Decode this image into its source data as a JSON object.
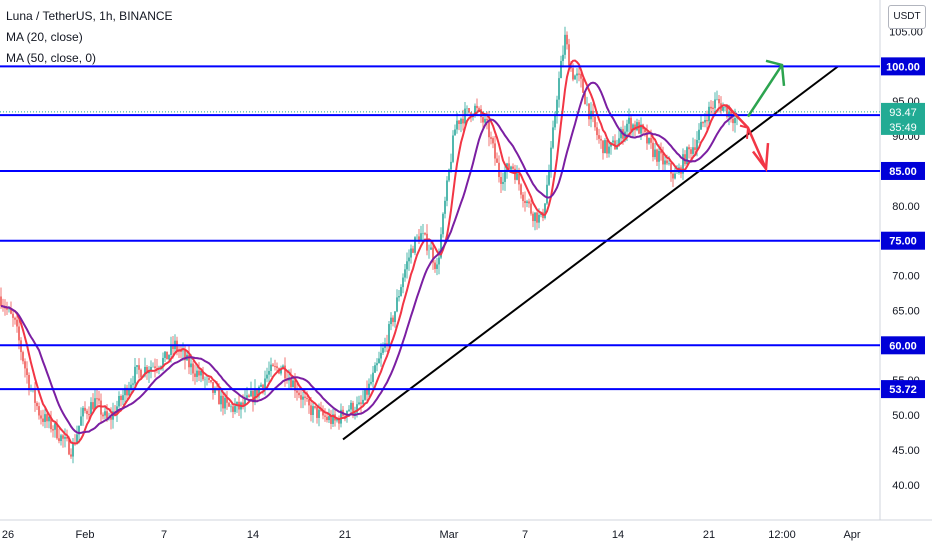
{
  "chart_data": {
    "type": "candlestick",
    "title": "Luna / TetherUS, 1h, BINANCE",
    "indicators": [
      "MA (20, close)",
      "MA (50, close, 0)"
    ],
    "unit": "USDT",
    "ylim": [
      37.5,
      109
    ],
    "y_ticks": [
      40,
      45,
      50,
      55,
      65,
      70,
      75,
      80,
      85,
      90,
      95,
      105
    ],
    "x_ticks": [
      "26",
      "Feb",
      "7",
      "14",
      "21",
      "Mar",
      "7",
      "14",
      "21",
      "12:00",
      "Apr"
    ],
    "horizontal_levels": [
      {
        "price": 100.0,
        "label": "100.00"
      },
      {
        "price": 93.0,
        "label": "93.00"
      },
      {
        "price": 85.0,
        "label": "85.00"
      },
      {
        "price": 75.0,
        "label": "75.00"
      },
      {
        "price": 60.0,
        "label": "60.00"
      },
      {
        "price": 53.72,
        "label": "53.72"
      }
    ],
    "current_price": {
      "label": "93.47",
      "countdown": "35:49",
      "price": 93.47
    },
    "trendline": [
      {
        "t": 0.0,
        "p": 46.5
      },
      {
        "t": 1.0,
        "p": 100.0
      }
    ],
    "price_path": [
      [
        0,
        67
      ],
      [
        15,
        63
      ],
      [
        28,
        55
      ],
      [
        40,
        50
      ],
      [
        55,
        48
      ],
      [
        65,
        46
      ],
      [
        72,
        45
      ],
      [
        82,
        50
      ],
      [
        95,
        52
      ],
      [
        108,
        49
      ],
      [
        120,
        52
      ],
      [
        135,
        56
      ],
      [
        150,
        57
      ],
      [
        165,
        58
      ],
      [
        175,
        60
      ],
      [
        190,
        57
      ],
      [
        205,
        55
      ],
      [
        215,
        53
      ],
      [
        228,
        51
      ],
      [
        240,
        51
      ],
      [
        255,
        53
      ],
      [
        268,
        56
      ],
      [
        282,
        57
      ],
      [
        296,
        54
      ],
      [
        308,
        51
      ],
      [
        320,
        50
      ],
      [
        335,
        49
      ],
      [
        348,
        51
      ],
      [
        360,
        51
      ],
      [
        372,
        55
      ],
      [
        385,
        60
      ],
      [
        395,
        65
      ],
      [
        403,
        70
      ],
      [
        412,
        74
      ],
      [
        420,
        76
      ],
      [
        430,
        74
      ],
      [
        437,
        71
      ],
      [
        443,
        78
      ],
      [
        450,
        86
      ],
      [
        456,
        92
      ],
      [
        464,
        93
      ],
      [
        475,
        94
      ],
      [
        488,
        91
      ],
      [
        500,
        84
      ],
      [
        512,
        86
      ],
      [
        522,
        82
      ],
      [
        532,
        79
      ],
      [
        542,
        78
      ],
      [
        550,
        86
      ],
      [
        557,
        96
      ],
      [
        565,
        104
      ],
      [
        572,
        99
      ],
      [
        580,
        98
      ],
      [
        590,
        93
      ],
      [
        600,
        89
      ],
      [
        608,
        88
      ],
      [
        617,
        89
      ],
      [
        628,
        92
      ],
      [
        640,
        91
      ],
      [
        652,
        88
      ],
      [
        665,
        86
      ],
      [
        676,
        84
      ],
      [
        685,
        87
      ],
      [
        695,
        89
      ],
      [
        706,
        93
      ],
      [
        716,
        95
      ],
      [
        724,
        94
      ],
      [
        732,
        93
      ],
      [
        738,
        92
      ]
    ]
  },
  "arrows": {
    "up_color": "#2ca44f",
    "down_color": "#f23645"
  },
  "colors": {
    "level_line": "#0000ff",
    "level_label_bg": "#0000d8",
    "trendline": "#000000",
    "ma20": "#f23645",
    "ma50": "#7b1fa2",
    "candle_up": "#26a69a",
    "candle_down": "#ef5350",
    "current_price": "#22ab94"
  }
}
